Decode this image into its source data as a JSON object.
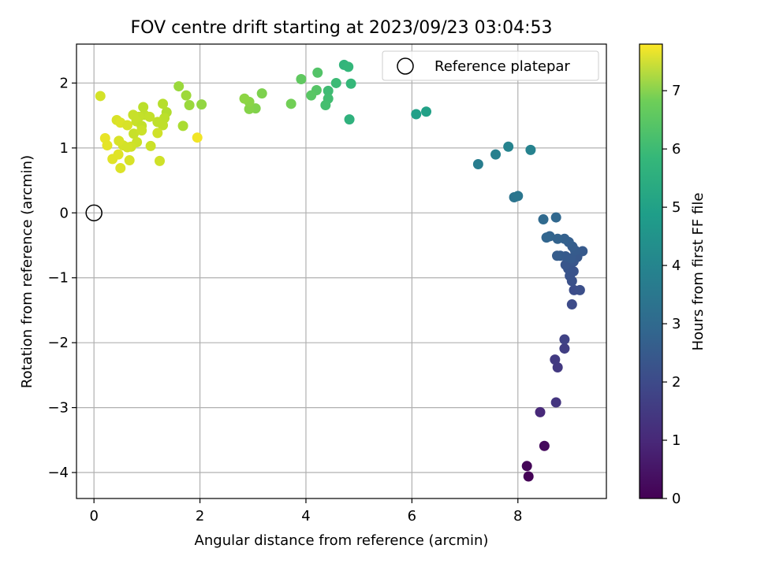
{
  "chart_data": {
    "type": "scatter",
    "title": "FOV centre drift starting at 2023/09/23 03:04:53",
    "xlabel": "Angular distance from reference (arcmin)",
    "ylabel": "Rotation from reference (arcmin)",
    "xlim": [
      -0.33,
      9.67
    ],
    "ylim": [
      -4.4,
      2.6
    ],
    "xticks": [
      0,
      2,
      4,
      6,
      8
    ],
    "xtick_labels": [
      "0",
      "2",
      "4",
      "6",
      "8"
    ],
    "yticks": [
      2,
      1,
      0,
      -1,
      -2,
      -3,
      -4
    ],
    "ytick_labels": [
      "2",
      "1",
      "0",
      "−1",
      "−2",
      "−3",
      "−4"
    ],
    "grid": true,
    "legend": {
      "position": "top-right",
      "entries": [
        {
          "label": "Reference platepar",
          "marker": "open-circle"
        }
      ]
    },
    "colorbar": {
      "label": "Hours from first FF file",
      "range": [
        0,
        7.8
      ],
      "ticks": [
        0,
        1,
        2,
        3,
        4,
        5,
        6,
        7
      ],
      "tick_labels": [
        "0",
        "1",
        "2",
        "3",
        "4",
        "5",
        "6",
        "7"
      ],
      "colormap": "viridis"
    },
    "reference_point": {
      "x": 0,
      "y": 0
    },
    "points": [
      {
        "x": 8.2,
        "y": -4.06,
        "t": 0.05
      },
      {
        "x": 8.17,
        "y": -3.9,
        "t": 0.1
      },
      {
        "x": 8.5,
        "y": -3.59,
        "t": 0.2
      },
      {
        "x": 8.42,
        "y": -3.07,
        "t": 0.9
      },
      {
        "x": 8.72,
        "y": -2.92,
        "t": 1.2
      },
      {
        "x": 8.75,
        "y": -2.38,
        "t": 1.3
      },
      {
        "x": 8.7,
        "y": -2.26,
        "t": 1.35
      },
      {
        "x": 8.88,
        "y": -2.09,
        "t": 1.45
      },
      {
        "x": 8.88,
        "y": -1.95,
        "t": 1.55
      },
      {
        "x": 9.02,
        "y": -1.41,
        "t": 1.8
      },
      {
        "x": 9.06,
        "y": -1.19,
        "t": 1.85
      },
      {
        "x": 9.17,
        "y": -1.19,
        "t": 1.9
      },
      {
        "x": 9.02,
        "y": -1.05,
        "t": 1.95
      },
      {
        "x": 8.98,
        "y": -0.97,
        "t": 2.0
      },
      {
        "x": 9.05,
        "y": -0.9,
        "t": 2.0
      },
      {
        "x": 8.95,
        "y": -0.86,
        "t": 2.05
      },
      {
        "x": 8.9,
        "y": -0.8,
        "t": 2.1
      },
      {
        "x": 9.05,
        "y": -0.75,
        "t": 2.1
      },
      {
        "x": 9.12,
        "y": -0.68,
        "t": 2.15
      },
      {
        "x": 9.0,
        "y": -0.7,
        "t": 2.2
      },
      {
        "x": 8.9,
        "y": -0.67,
        "t": 2.2
      },
      {
        "x": 8.8,
        "y": -0.66,
        "t": 2.25
      },
      {
        "x": 8.74,
        "y": -0.66,
        "t": 2.3
      },
      {
        "x": 9.22,
        "y": -0.59,
        "t": 2.2
      },
      {
        "x": 9.08,
        "y": -0.58,
        "t": 2.25
      },
      {
        "x": 9.03,
        "y": -0.52,
        "t": 2.3
      },
      {
        "x": 8.96,
        "y": -0.45,
        "t": 2.35
      },
      {
        "x": 8.88,
        "y": -0.4,
        "t": 2.4
      },
      {
        "x": 8.75,
        "y": -0.4,
        "t": 2.45
      },
      {
        "x": 8.6,
        "y": -0.36,
        "t": 2.5
      },
      {
        "x": 8.54,
        "y": -0.38,
        "t": 2.55
      },
      {
        "x": 8.48,
        "y": -0.1,
        "t": 2.65
      },
      {
        "x": 8.72,
        "y": -0.07,
        "t": 2.6
      },
      {
        "x": 7.93,
        "y": 0.24,
        "t": 3.0
      },
      {
        "x": 8.0,
        "y": 0.26,
        "t": 3.05
      },
      {
        "x": 7.25,
        "y": 0.75,
        "t": 3.3
      },
      {
        "x": 7.58,
        "y": 0.9,
        "t": 3.4
      },
      {
        "x": 7.82,
        "y": 1.02,
        "t": 3.5
      },
      {
        "x": 8.24,
        "y": 0.97,
        "t": 3.45
      },
      {
        "x": 6.08,
        "y": 1.52,
        "t": 4.4
      },
      {
        "x": 6.27,
        "y": 1.56,
        "t": 4.45
      },
      {
        "x": 4.82,
        "y": 1.44,
        "t": 5.0
      },
      {
        "x": 4.72,
        "y": 2.28,
        "t": 5.1
      },
      {
        "x": 4.8,
        "y": 2.25,
        "t": 5.15
      },
      {
        "x": 4.85,
        "y": 1.99,
        "t": 5.2
      },
      {
        "x": 4.57,
        "y": 2.0,
        "t": 5.3
      },
      {
        "x": 4.42,
        "y": 1.88,
        "t": 5.35
      },
      {
        "x": 4.42,
        "y": 1.76,
        "t": 5.4
      },
      {
        "x": 4.37,
        "y": 1.66,
        "t": 5.45
      },
      {
        "x": 4.22,
        "y": 2.16,
        "t": 5.65
      },
      {
        "x": 4.2,
        "y": 1.89,
        "t": 5.7
      },
      {
        "x": 4.1,
        "y": 1.81,
        "t": 5.75
      },
      {
        "x": 3.91,
        "y": 2.06,
        "t": 5.85
      },
      {
        "x": 3.72,
        "y": 1.68,
        "t": 6.1
      },
      {
        "x": 3.17,
        "y": 1.84,
        "t": 6.25
      },
      {
        "x": 3.05,
        "y": 1.61,
        "t": 6.3
      },
      {
        "x": 2.93,
        "y": 1.6,
        "t": 6.35
      },
      {
        "x": 2.93,
        "y": 1.71,
        "t": 6.4
      },
      {
        "x": 2.84,
        "y": 1.76,
        "t": 6.45
      },
      {
        "x": 2.03,
        "y": 1.67,
        "t": 6.5
      },
      {
        "x": 1.8,
        "y": 1.66,
        "t": 6.6
      },
      {
        "x": 1.74,
        "y": 1.81,
        "t": 6.65
      },
      {
        "x": 1.6,
        "y": 1.95,
        "t": 6.6
      },
      {
        "x": 1.68,
        "y": 1.34,
        "t": 6.8
      },
      {
        "x": 1.37,
        "y": 1.55,
        "t": 6.9
      },
      {
        "x": 1.3,
        "y": 1.68,
        "t": 6.95
      },
      {
        "x": 1.33,
        "y": 1.46,
        "t": 7.0
      },
      {
        "x": 1.2,
        "y": 1.4,
        "t": 7.05
      },
      {
        "x": 1.3,
        "y": 1.35,
        "t": 7.05
      },
      {
        "x": 0.93,
        "y": 1.63,
        "t": 7.0
      },
      {
        "x": 0.95,
        "y": 1.51,
        "t": 7.05
      },
      {
        "x": 1.05,
        "y": 1.48,
        "t": 7.1
      },
      {
        "x": 0.85,
        "y": 1.48,
        "t": 7.1
      },
      {
        "x": 0.74,
        "y": 1.51,
        "t": 7.15
      },
      {
        "x": 0.8,
        "y": 1.41,
        "t": 7.15
      },
      {
        "x": 0.9,
        "y": 1.34,
        "t": 7.1
      },
      {
        "x": 0.75,
        "y": 1.22,
        "t": 7.15
      },
      {
        "x": 0.9,
        "y": 1.27,
        "t": 7.2
      },
      {
        "x": 0.81,
        "y": 1.09,
        "t": 7.2
      },
      {
        "x": 0.7,
        "y": 1.02,
        "t": 7.25
      },
      {
        "x": 0.55,
        "y": 1.04,
        "t": 7.3
      },
      {
        "x": 0.63,
        "y": 1.01,
        "t": 7.3
      },
      {
        "x": 0.47,
        "y": 1.11,
        "t": 7.35
      },
      {
        "x": 0.43,
        "y": 1.43,
        "t": 7.35
      },
      {
        "x": 0.5,
        "y": 1.39,
        "t": 7.4
      },
      {
        "x": 0.63,
        "y": 1.35,
        "t": 7.35
      },
      {
        "x": 0.12,
        "y": 1.8,
        "t": 7.3
      },
      {
        "x": 0.21,
        "y": 1.15,
        "t": 7.55
      },
      {
        "x": 0.25,
        "y": 1.04,
        "t": 7.5
      },
      {
        "x": 0.35,
        "y": 0.83,
        "t": 7.45
      },
      {
        "x": 0.46,
        "y": 0.9,
        "t": 7.45
      },
      {
        "x": 0.5,
        "y": 0.69,
        "t": 7.4
      },
      {
        "x": 0.67,
        "y": 0.81,
        "t": 7.35
      },
      {
        "x": 1.07,
        "y": 1.03,
        "t": 7.2
      },
      {
        "x": 1.2,
        "y": 1.23,
        "t": 7.25
      },
      {
        "x": 1.24,
        "y": 0.8,
        "t": 7.25
      },
      {
        "x": 1.95,
        "y": 1.16,
        "t": 7.65
      }
    ]
  }
}
